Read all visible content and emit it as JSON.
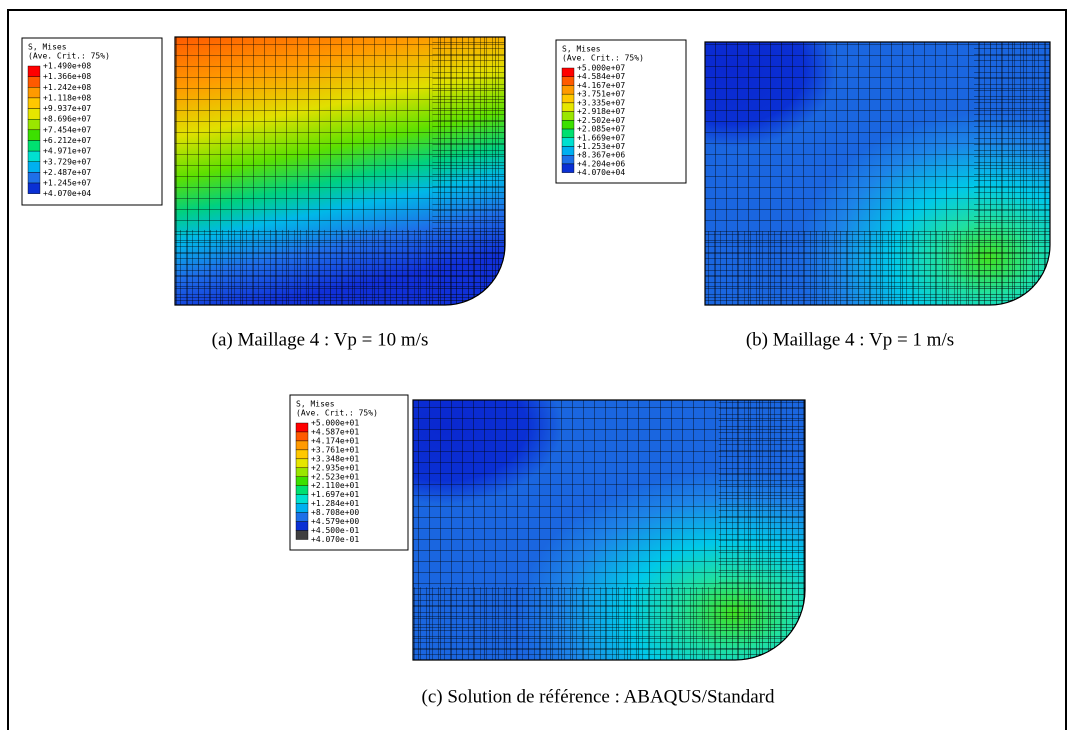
{
  "panels": [
    {
      "legend": {
        "title": "S, Mises",
        "subtitle": "(Ave. Crit.: 75%)",
        "entries": [
          "+1.490e+08",
          "+1.366e+08",
          "+1.242e+08",
          "+1.118e+08",
          "+9.937e+07",
          "+8.696e+07",
          "+7.454e+07",
          "+6.212e+07",
          "+4.971e+07",
          "+3.729e+07",
          "+2.487e+07",
          "+1.245e+07",
          "+4.070e+04"
        ]
      },
      "caption": "(a) Maillage 4 : Vp = 10 m/s"
    },
    {
      "legend": {
        "title": "S, Mises",
        "subtitle": "(Ave. Crit.: 75%)",
        "entries": [
          "+5.000e+07",
          "+4.584e+07",
          "+4.167e+07",
          "+3.751e+07",
          "+3.335e+07",
          "+2.918e+07",
          "+2.502e+07",
          "+2.085e+07",
          "+1.669e+07",
          "+1.253e+07",
          "+8.367e+06",
          "+4.204e+06",
          "+4.070e+04"
        ]
      },
      "caption": "(b) Maillage 4 : Vp = 1 m/s"
    },
    {
      "legend": {
        "title": "S, Mises",
        "subtitle": "(Ave. Crit.: 75%)",
        "entries": [
          "+5.000e+01",
          "+4.587e+01",
          "+4.174e+01",
          "+3.761e+01",
          "+3.348e+01",
          "+2.935e+01",
          "+2.523e+01",
          "+2.110e+01",
          "+1.697e+01",
          "+1.284e+01",
          "+8.708e+00",
          "+4.579e+00",
          "+4.500e-01",
          "+4.070e-01"
        ]
      },
      "caption": "(c) Solution de référence : ABAQUS/Standard"
    }
  ]
}
